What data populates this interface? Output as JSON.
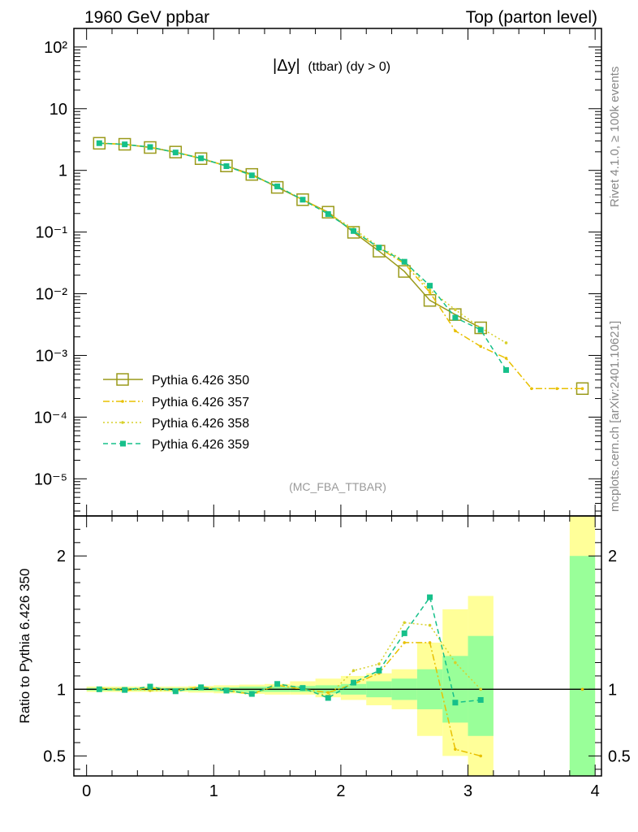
{
  "header": {
    "left": "1960 GeV ppbar",
    "right": "Top (parton level)"
  },
  "side": {
    "rivet": "Rivet 4.1.0, ≥ 100k events",
    "mcplots": "mcplots.cern.ch [arXiv:2401.10621]"
  },
  "colors": {
    "p350": "#9a9a1a",
    "p357": "#e8c000",
    "p358": "#d7d02a",
    "p359": "#16c08a",
    "band_yellow": "#ffff99",
    "band_green": "#99ff99"
  },
  "chart_data": {
    "type": "line",
    "title_main": "|Δy|",
    "title_sub": "(ttbar) (dy > 0)",
    "analysis": "(MC_FBA_TTBAR)",
    "xlabel": "",
    "ylabel_ratio": "Ratio to Pythia 6.426 350",
    "xlim": [
      -0.1,
      4.05
    ],
    "ylim_main": [
      2.5e-06,
      200
    ],
    "ylim_ratio": [
      0.35,
      2.3
    ],
    "x_ticks": [
      "0",
      "1",
      "2",
      "3",
      "4"
    ],
    "y_ticks_main": [
      "10²",
      "10",
      "1",
      "10⁻¹",
      "10⁻²",
      "10⁻³",
      "10⁻⁴",
      "10⁻⁵"
    ],
    "y_ticks_ratio": [
      "0.5",
      "1",
      "2"
    ],
    "x": [
      0.1,
      0.3,
      0.5,
      0.7,
      0.9,
      1.1,
      1.3,
      1.5,
      1.7,
      1.9,
      2.1,
      2.3,
      2.5,
      2.7,
      2.9,
      3.1,
      3.3,
      3.5,
      3.7,
      3.9
    ],
    "series": [
      {
        "name": "Pythia 6.426 350",
        "style": "solid",
        "marker": "square-open",
        "values": [
          2.75,
          2.65,
          2.35,
          1.98,
          1.55,
          1.18,
          0.86,
          0.53,
          0.335,
          0.21,
          0.099,
          0.049,
          0.023,
          0.0078,
          0.0046,
          0.0028,
          null,
          null,
          null,
          0.00029
        ]
      },
      {
        "name": "Pythia 6.426 357",
        "style": "dashdot",
        "marker": "small",
        "values": [
          2.78,
          2.63,
          2.38,
          1.96,
          1.58,
          1.17,
          0.83,
          0.545,
          0.335,
          0.205,
          0.103,
          0.055,
          0.031,
          0.0105,
          0.0025,
          0.0014,
          0.0009,
          0.00029,
          0.00029,
          0.00029
        ]
      },
      {
        "name": "Pythia 6.426 358",
        "style": "dotted",
        "marker": "small",
        "values": [
          2.76,
          2.66,
          2.33,
          1.97,
          1.57,
          1.19,
          0.82,
          0.555,
          0.335,
          0.2,
          0.113,
          0.058,
          0.0345,
          0.0115,
          0.0055,
          0.0028,
          0.0016,
          null,
          null,
          null
        ]
      },
      {
        "name": "Pythia 6.426 359",
        "style": "dashed",
        "marker": "filled-square",
        "values": [
          2.76,
          2.64,
          2.39,
          1.95,
          1.57,
          1.17,
          0.83,
          0.55,
          0.335,
          0.196,
          0.104,
          0.056,
          0.033,
          0.0135,
          0.0041,
          0.0026,
          0.00058,
          null,
          null,
          null
        ]
      }
    ],
    "ratio_series": [
      {
        "name": "Pythia 6.426 357",
        "values": [
          1.01,
          0.99,
          1.01,
          0.99,
          1.02,
          0.99,
          0.965,
          1.03,
          1.0,
          0.975,
          1.04,
          1.12,
          1.35,
          1.35,
          0.55,
          0.5,
          null,
          null,
          null,
          1.0
        ]
      },
      {
        "name": "Pythia 6.426 358",
        "values": [
          1.005,
          1.005,
          0.99,
          0.995,
          1.01,
          1.0,
          0.955,
          1.045,
          1.0,
          0.95,
          1.14,
          1.19,
          1.5,
          1.48,
          1.2,
          1.0,
          null,
          null,
          null,
          null
        ]
      },
      {
        "name": "Pythia 6.426 359",
        "values": [
          1.0,
          0.995,
          1.02,
          0.985,
          1.015,
          0.99,
          0.965,
          1.04,
          1.01,
          0.935,
          1.05,
          1.14,
          1.42,
          1.69,
          0.9,
          0.92,
          null,
          null,
          null,
          null
        ]
      }
    ],
    "band_edges": [
      0.0,
      0.2,
      0.4,
      0.6,
      0.8,
      1.0,
      1.2,
      1.4,
      1.6,
      1.8,
      2.0,
      2.2,
      2.4,
      2.6,
      2.8,
      3.0,
      3.2,
      3.4,
      3.6,
      3.8,
      4.0
    ],
    "band_yellow": [
      [
        0.98,
        1.02
      ],
      [
        0.98,
        1.02
      ],
      [
        0.98,
        1.02
      ],
      [
        0.98,
        1.02
      ],
      [
        0.975,
        1.025
      ],
      [
        0.97,
        1.03
      ],
      [
        0.965,
        1.035
      ],
      [
        0.96,
        1.04
      ],
      [
        0.96,
        1.06
      ],
      [
        0.94,
        1.08
      ],
      [
        0.92,
        1.1
      ],
      [
        0.88,
        1.12
      ],
      [
        0.85,
        1.15
      ],
      [
        0.65,
        1.35
      ],
      [
        0.5,
        1.6
      ],
      [
        0.35,
        1.7
      ],
      null,
      null,
      null,
      [
        0.35,
        2.3
      ]
    ],
    "band_green": [
      [
        0.99,
        1.01
      ],
      [
        0.99,
        1.01
      ],
      [
        0.99,
        1.01
      ],
      [
        0.99,
        1.01
      ],
      [
        0.988,
        1.012
      ],
      [
        0.985,
        1.015
      ],
      [
        0.98,
        1.02
      ],
      [
        0.98,
        1.02
      ],
      [
        0.98,
        1.025
      ],
      [
        0.97,
        1.03
      ],
      [
        0.96,
        1.04
      ],
      [
        0.94,
        1.06
      ],
      [
        0.92,
        1.08
      ],
      [
        0.85,
        1.15
      ],
      [
        0.75,
        1.25
      ],
      [
        0.65,
        1.4
      ],
      null,
      null,
      null,
      [
        0.35,
        2.0
      ]
    ]
  }
}
